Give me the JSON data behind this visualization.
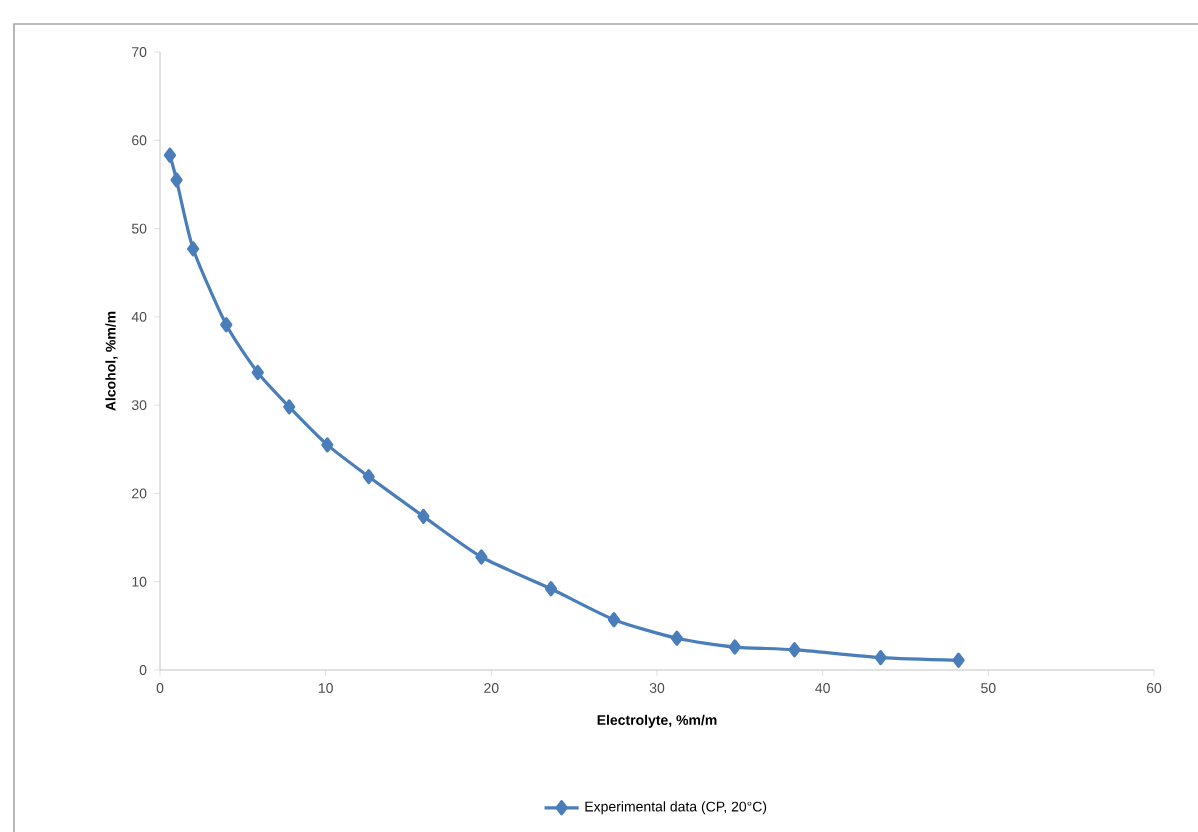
{
  "chart_data": {
    "type": "line",
    "xlabel": "Electrolyte, %m/m",
    "ylabel": "Alcohol, %m/m",
    "x": [
      0.6,
      1.0,
      2.0,
      4.0,
      5.9,
      7.8,
      10.1,
      12.6,
      15.9,
      19.4,
      23.6,
      27.4,
      31.2,
      34.7,
      38.3,
      43.5,
      48.2
    ],
    "series": [
      {
        "name": "Experimental data (CP, 20°C)",
        "color": "#4a7ebb",
        "values": [
          58.3,
          55.5,
          47.7,
          39.1,
          33.7,
          29.8,
          25.5,
          21.9,
          17.4,
          12.8,
          9.2,
          5.7,
          3.6,
          2.6,
          2.3,
          1.4,
          1.1
        ]
      }
    ],
    "xlim": [
      0,
      60
    ],
    "xticks": [
      0,
      10,
      20,
      30,
      40,
      50,
      60
    ],
    "ylim": [
      0,
      70
    ],
    "yticks": [
      0,
      10,
      20,
      30,
      40,
      50,
      60,
      70
    ],
    "grid": false,
    "legend": "bottom",
    "marker": "diamond",
    "line_style": "solid"
  }
}
